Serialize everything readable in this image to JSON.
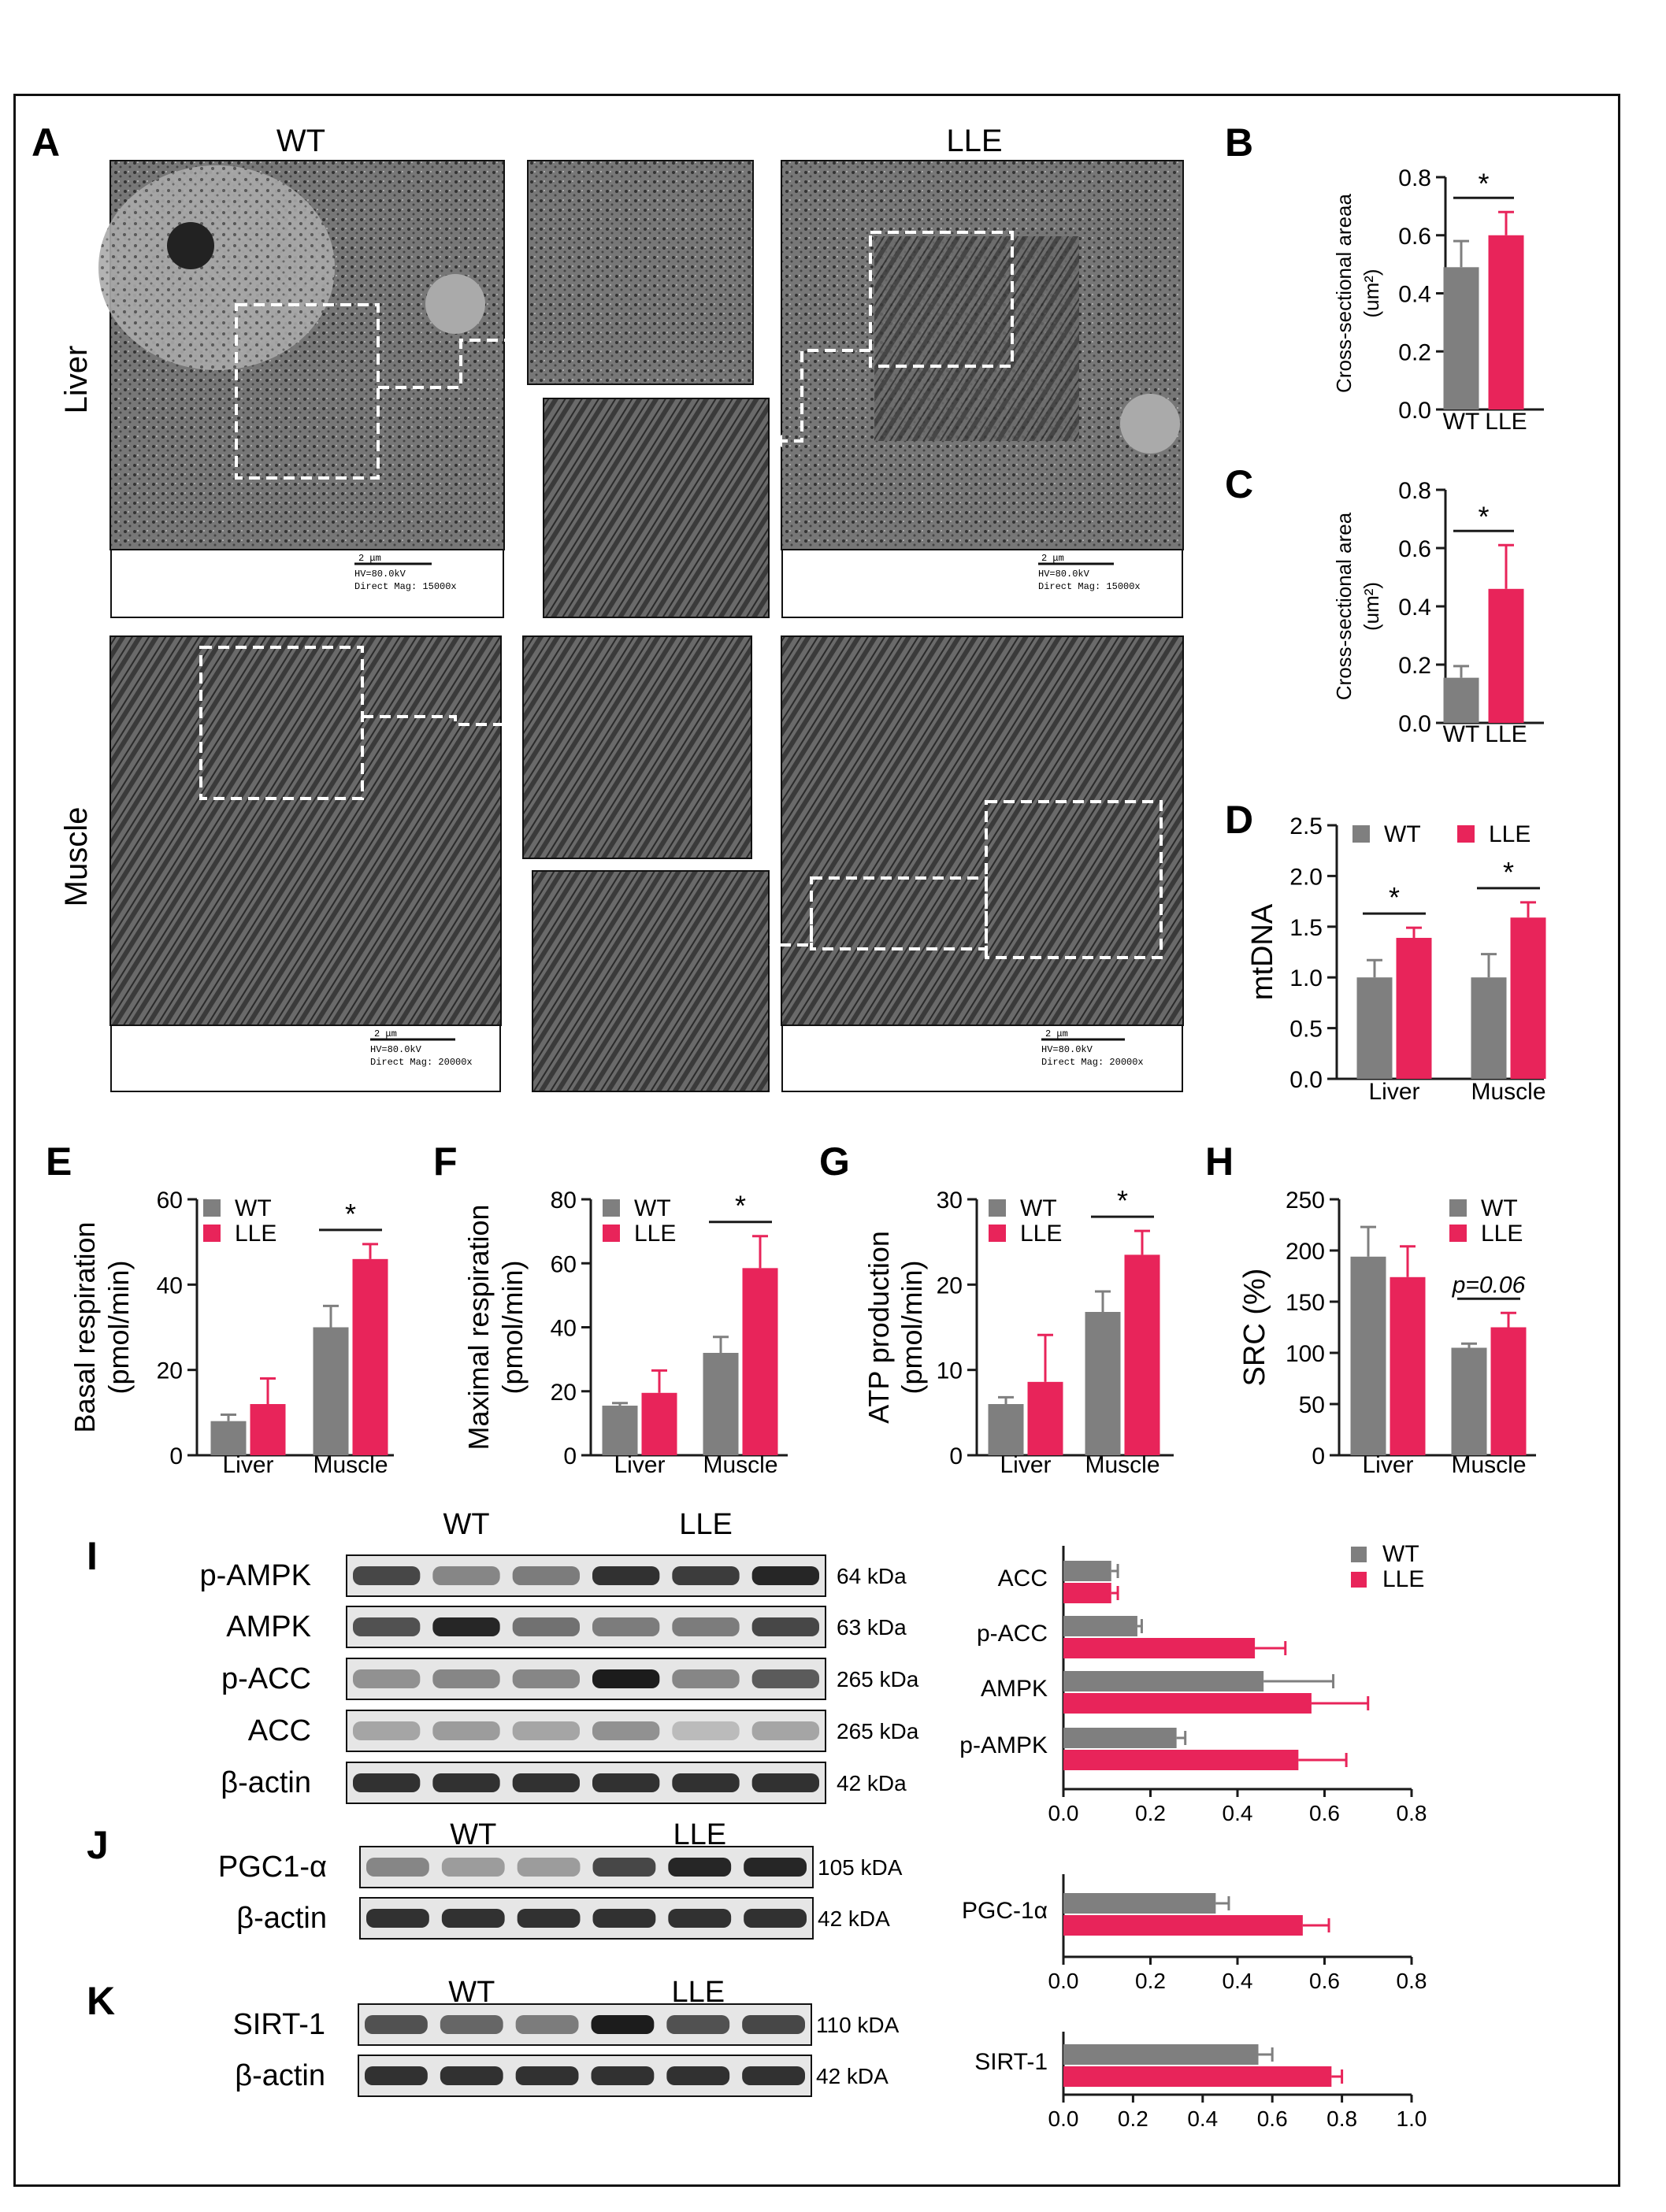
{
  "panel_letters": [
    "A",
    "B",
    "C",
    "D",
    "E",
    "F",
    "G",
    "H",
    "I",
    "J",
    "K"
  ],
  "panel_a": {
    "col_labels": [
      "WT",
      "LLE"
    ],
    "row_labels": [
      "Liver",
      "Muscle"
    ],
    "scale_text_15k": [
      "2 μm",
      "HV=80.0kV",
      "Direct Mag: 15000x"
    ],
    "scale_text_20k": [
      "2 μm",
      "HV=80.0kV",
      "Direct Mag: 20000x"
    ]
  },
  "colors": {
    "wt": "#7f7f7f",
    "lle": "#e8245a",
    "axis": "#1a1a1a"
  },
  "chart_data": [
    {
      "id": "B",
      "type": "bar",
      "categories": [
        "WT",
        "LLE"
      ],
      "values": [
        0.49,
        0.6
      ],
      "errors": [
        0.09,
        0.08
      ],
      "ylabel": "Cross-sectional areaa",
      "yunit": "(um²)",
      "ylim": [
        0,
        0.8
      ],
      "yticks": [
        "0.0",
        "0.2",
        "0.4",
        "0.6",
        "0.8"
      ],
      "significance": "*"
    },
    {
      "id": "C",
      "type": "bar",
      "categories": [
        "WT",
        "LLE"
      ],
      "values": [
        0.155,
        0.46
      ],
      "errors": [
        0.04,
        0.15
      ],
      "ylabel": "Cross-sectional area",
      "yunit": "(um²)",
      "ylim": [
        0,
        0.8
      ],
      "yticks": [
        "0.0",
        "0.2",
        "0.4",
        "0.6",
        "0.8"
      ],
      "significance": "*"
    },
    {
      "id": "D",
      "type": "bar",
      "categories": [
        "Liver",
        "Muscle"
      ],
      "series": [
        {
          "name": "WT",
          "values": [
            1.0,
            1.0
          ],
          "errors": [
            0.17,
            0.23
          ]
        },
        {
          "name": "LLE",
          "values": [
            1.39,
            1.59
          ],
          "errors": [
            0.1,
            0.15
          ]
        }
      ],
      "ylabel": "mtDNA",
      "ylim": [
        0,
        2.5
      ],
      "yticks": [
        "0.0",
        "0.5",
        "1.0",
        "1.5",
        "2.0",
        "2.5"
      ],
      "significance": [
        "*",
        "*"
      ],
      "legend": "top"
    },
    {
      "id": "E",
      "type": "bar",
      "categories": [
        "Liver",
        "Muscle"
      ],
      "series": [
        {
          "name": "WT",
          "values": [
            8,
            30
          ],
          "errors": [
            1.5,
            5
          ]
        },
        {
          "name": "LLE",
          "values": [
            12,
            46
          ],
          "errors": [
            6,
            3.5
          ]
        }
      ],
      "ylabel": "Basal respiration",
      "yunit": "(pmol/min)",
      "ylim": [
        0,
        60
      ],
      "yticks": [
        "0",
        "20",
        "40",
        "60"
      ],
      "significance": [
        "",
        "*"
      ],
      "legend": "top-left"
    },
    {
      "id": "F",
      "type": "bar",
      "categories": [
        "Liver",
        "Muscle"
      ],
      "series": [
        {
          "name": "WT",
          "values": [
            15.5,
            32
          ],
          "errors": [
            0.8,
            5
          ]
        },
        {
          "name": "LLE",
          "values": [
            19.5,
            58.5
          ],
          "errors": [
            7,
            10
          ]
        }
      ],
      "ylabel": "Maximal respiration",
      "yunit": "(pmol/min)",
      "ylim": [
        0,
        80
      ],
      "yticks": [
        "0",
        "20",
        "40",
        "60",
        "80"
      ],
      "significance": [
        "",
        "*"
      ],
      "legend": "top-left"
    },
    {
      "id": "G",
      "type": "bar",
      "categories": [
        "Liver",
        "Muscle"
      ],
      "series": [
        {
          "name": "WT",
          "values": [
            6,
            16.8
          ],
          "errors": [
            0.8,
            2.4
          ]
        },
        {
          "name": "LLE",
          "values": [
            8.6,
            23.5
          ],
          "errors": [
            5.5,
            2.8
          ]
        }
      ],
      "ylabel": "ATP production",
      "yunit": "(pmol/min)",
      "ylim": [
        0,
        30
      ],
      "yticks": [
        "0",
        "10",
        "20",
        "30"
      ],
      "significance": [
        "",
        "*"
      ],
      "legend": "top-left"
    },
    {
      "id": "H",
      "type": "bar",
      "categories": [
        "Liver",
        "Muscle"
      ],
      "series": [
        {
          "name": "WT",
          "values": [
            194,
            105
          ],
          "errors": [
            29,
            4
          ]
        },
        {
          "name": "LLE",
          "values": [
            174,
            125
          ],
          "errors": [
            30,
            14
          ]
        }
      ],
      "ylabel": "SRC (%)",
      "ylim": [
        0,
        250
      ],
      "yticks": [
        "0",
        "50",
        "100",
        "150",
        "200",
        "250"
      ],
      "significance": [
        "",
        "p=0.06"
      ],
      "legend": "top-right"
    },
    {
      "id": "I",
      "type": "bar",
      "orientation": "horizontal",
      "categories": [
        "ACC",
        "p-ACC",
        "AMPK",
        "p-AMPK"
      ],
      "series": [
        {
          "name": "WT",
          "values": [
            0.11,
            0.17,
            0.46,
            0.26
          ],
          "errors": [
            0.015,
            0.01,
            0.16,
            0.02
          ]
        },
        {
          "name": "LLE",
          "values": [
            0.11,
            0.44,
            0.57,
            0.54
          ],
          "errors": [
            0.015,
            0.07,
            0.13,
            0.11
          ]
        }
      ],
      "xlim": [
        0,
        0.8
      ],
      "xticks": [
        "0.0",
        "0.2",
        "0.4",
        "0.6",
        "0.8"
      ],
      "legend": "top-right"
    },
    {
      "id": "J",
      "type": "bar",
      "orientation": "horizontal",
      "categories": [
        "PGC-1α"
      ],
      "series": [
        {
          "name": "WT",
          "values": [
            0.35
          ],
          "errors": [
            0.03
          ]
        },
        {
          "name": "LLE",
          "values": [
            0.55
          ],
          "errors": [
            0.06
          ]
        }
      ],
      "xlim": [
        0,
        0.8
      ],
      "xticks": [
        "0.0",
        "0.2",
        "0.4",
        "0.6",
        "0.8"
      ]
    },
    {
      "id": "K",
      "type": "bar",
      "orientation": "horizontal",
      "categories": [
        "SIRT-1"
      ],
      "series": [
        {
          "name": "WT",
          "values": [
            0.56
          ],
          "errors": [
            0.04
          ]
        },
        {
          "name": "LLE",
          "values": [
            0.77
          ],
          "errors": [
            0.03
          ]
        }
      ],
      "xlim": [
        0,
        1.0
      ],
      "xticks": [
        "0.0",
        "0.2",
        "0.4",
        "0.6",
        "0.8",
        "1.0"
      ]
    }
  ],
  "blots": {
    "I": {
      "groups": [
        "WT",
        "LLE"
      ],
      "rows": [
        {
          "protein": "p-AMPK",
          "size": "64 kDa"
        },
        {
          "protein": "AMPK",
          "size": "63 kDa"
        },
        {
          "protein": "p-ACC",
          "size": "265 kDa"
        },
        {
          "protein": "ACC",
          "size": "265 kDa"
        },
        {
          "protein": "β-actin",
          "size": "42 kDa"
        }
      ]
    },
    "J": {
      "groups": [
        "WT",
        "LLE"
      ],
      "rows": [
        {
          "protein": "PGC1-α",
          "size": "105 kDA"
        },
        {
          "protein": "β-actin",
          "size": "42 kDA"
        }
      ]
    },
    "K": {
      "groups": [
        "WT",
        "LLE"
      ],
      "rows": [
        {
          "protein": "SIRT-1",
          "size": "110 kDA"
        },
        {
          "protein": "β-actin",
          "size": "42 kDA"
        }
      ]
    }
  }
}
